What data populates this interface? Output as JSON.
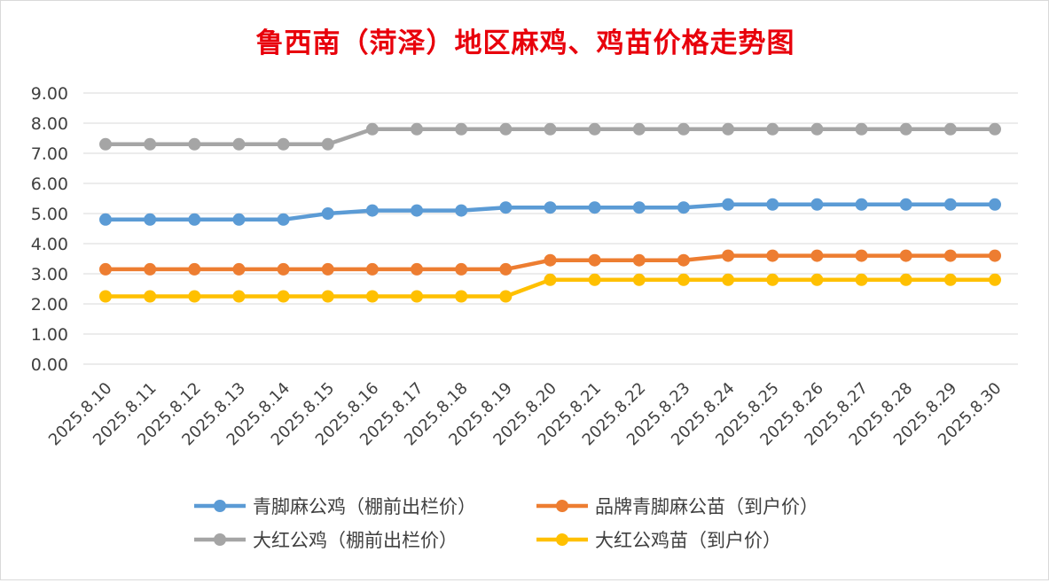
{
  "chart_data": {
    "type": "line",
    "title": "鲁西南（菏泽）地区麻鸡、鸡苗价格走势图",
    "xlabel": "",
    "ylabel": "",
    "ylim": [
      0,
      9
    ],
    "ytick_labels": [
      "0.00",
      "1.00",
      "2.00",
      "3.00",
      "4.00",
      "5.00",
      "6.00",
      "7.00",
      "8.00",
      "9.00"
    ],
    "grid": true,
    "legend_position": "bottom",
    "categories": [
      "2025.8.10",
      "2025.8.11",
      "2025.8.12",
      "2025.8.13",
      "2025.8.14",
      "2025.8.15",
      "2025.8.16",
      "2025.8.17",
      "2025.8.18",
      "2025.8.19",
      "2025.8.20",
      "2025.8.21",
      "2025.8.22",
      "2025.8.23",
      "2025.8.24",
      "2025.8.25",
      "2025.8.26",
      "2025.8.27",
      "2025.8.28",
      "2025.8.29",
      "2025.8.30"
    ],
    "series": [
      {
        "name": "青脚麻公鸡（棚前出栏价）",
        "color": "#5b9bd5",
        "values": [
          4.8,
          4.8,
          4.8,
          4.8,
          4.8,
          5.0,
          5.1,
          5.1,
          5.1,
          5.2,
          5.2,
          5.2,
          5.2,
          5.2,
          5.3,
          5.3,
          5.3,
          5.3,
          5.3,
          5.3,
          5.3
        ]
      },
      {
        "name": "品牌青脚麻公苗（到户价）",
        "color": "#ed7d31",
        "values": [
          3.15,
          3.15,
          3.15,
          3.15,
          3.15,
          3.15,
          3.15,
          3.15,
          3.15,
          3.15,
          3.45,
          3.45,
          3.45,
          3.45,
          3.6,
          3.6,
          3.6,
          3.6,
          3.6,
          3.6,
          3.6
        ]
      },
      {
        "name": "大红公鸡（棚前出栏价）",
        "color": "#a5a5a5",
        "values": [
          7.3,
          7.3,
          7.3,
          7.3,
          7.3,
          7.3,
          7.8,
          7.8,
          7.8,
          7.8,
          7.8,
          7.8,
          7.8,
          7.8,
          7.8,
          7.8,
          7.8,
          7.8,
          7.8,
          7.8,
          7.8
        ]
      },
      {
        "name": "大红公鸡苗（到户价）",
        "color": "#ffc000",
        "values": [
          2.25,
          2.25,
          2.25,
          2.25,
          2.25,
          2.25,
          2.25,
          2.25,
          2.25,
          2.25,
          2.8,
          2.8,
          2.8,
          2.8,
          2.8,
          2.8,
          2.8,
          2.8,
          2.8,
          2.8,
          2.8
        ]
      }
    ],
    "legend_order": [
      0,
      1,
      2,
      3
    ]
  },
  "style": {
    "title_color": "#e8000b",
    "grid_color": "#d9d9d9",
    "axis_text_color": "#404040"
  }
}
